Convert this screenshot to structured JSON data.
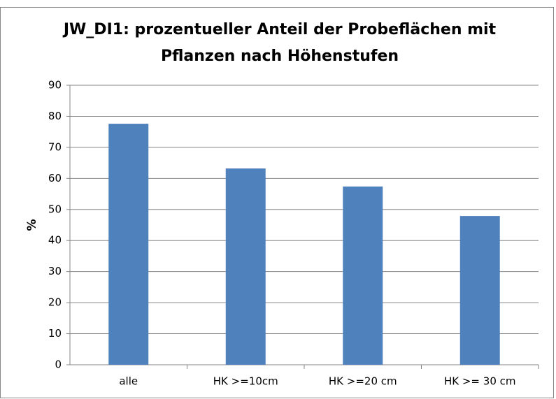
{
  "chart_data": {
    "type": "bar",
    "title": "JW_DI1: prozentueller Anteil der Probeflächen mit Pflanzen nach Höhenstufen",
    "ylabel": "%",
    "categories": [
      "alle",
      "HK >=10cm",
      "HK >=20 cm",
      "HK >= 30 cm"
    ],
    "values": [
      77.6,
      63.2,
      57.4,
      47.9
    ],
    "color": "#4f81bd",
    "ylim": [
      0,
      90
    ],
    "yticks": [
      0,
      10,
      20,
      30,
      40,
      50,
      60,
      70,
      80,
      90
    ],
    "grid": true
  }
}
